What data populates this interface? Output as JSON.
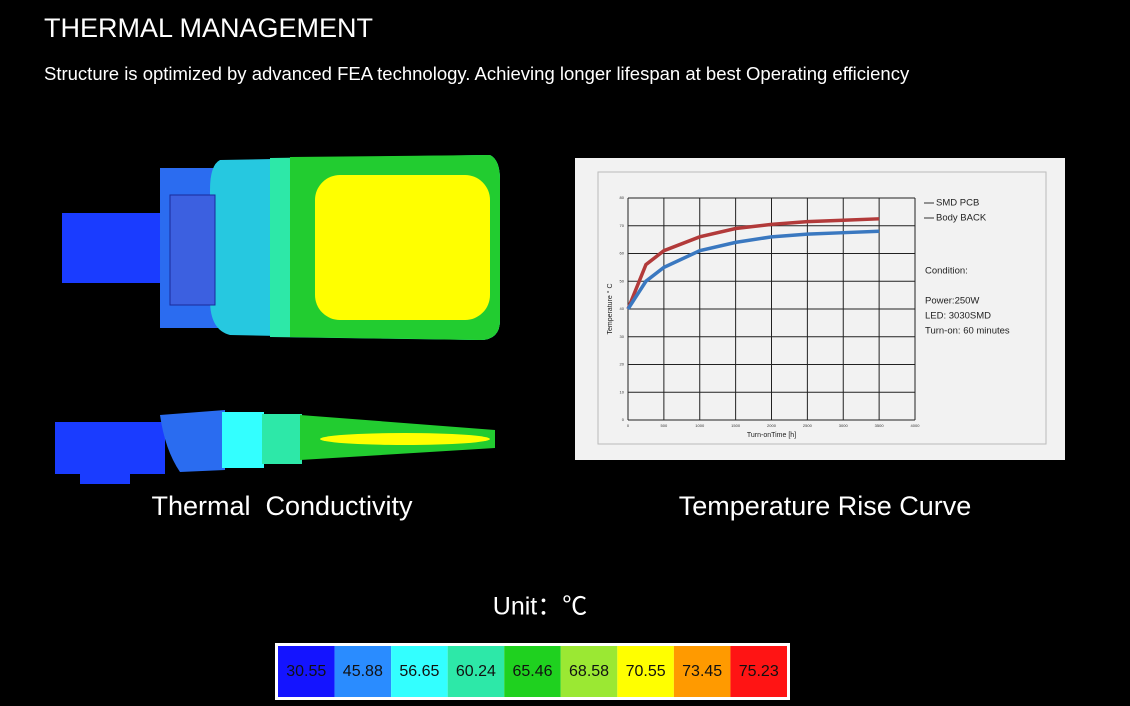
{
  "header": {
    "title": "THERMAL MANAGEMENT",
    "subtitle": "Structure is optimized by advanced FEA technology. Achieving longer lifespan at best Operating efficiency"
  },
  "figures": {
    "left_caption": "Thermal  Conductivity",
    "right_caption": "Temperature Rise Curve"
  },
  "scale": {
    "unit_label": "Unit：℃",
    "items": [
      {
        "value": 30.55,
        "color": "#1414ff"
      },
      {
        "value": 45.88,
        "color": "#2a8cff"
      },
      {
        "value": 56.65,
        "color": "#33ffff"
      },
      {
        "value": 60.24,
        "color": "#2de8a8"
      },
      {
        "value": 65.46,
        "color": "#1fd11f"
      },
      {
        "value": 68.58,
        "color": "#9be833"
      },
      {
        "value": 70.55,
        "color": "#ffff00"
      },
      {
        "value": 73.45,
        "color": "#ff9a00"
      },
      {
        "value": 75.23,
        "color": "#ff1414"
      }
    ]
  },
  "chart_data": {
    "type": "line",
    "x_label": "Turn-onTime [h]",
    "y_label": "Temperature ° C",
    "x": [
      0,
      250,
      500,
      1000,
      1500,
      2000,
      2500,
      3000,
      3500
    ],
    "series": [
      {
        "name": "SMD PCB",
        "color": "#b23a3a",
        "values": [
          40,
          56,
          61,
          66,
          69,
          70.5,
          71.5,
          72,
          72.5
        ]
      },
      {
        "name": "Body BACK",
        "color": "#3a78c0",
        "values": [
          40,
          50,
          55,
          61,
          64,
          66,
          67,
          67.5,
          68
        ]
      }
    ],
    "xlim": [
      0,
      4000
    ],
    "xticks": [
      0,
      500,
      1000,
      1500,
      2000,
      2500,
      3000,
      3500,
      4000
    ],
    "ylim": [
      0,
      80
    ],
    "yticks": [
      0,
      10,
      20,
      30,
      40,
      50,
      60,
      70,
      80
    ],
    "grid": true,
    "notes": [
      "Condition:",
      "Power:250W",
      "LED: 3030SMD",
      "Turn-on: 60 minutes"
    ]
  }
}
